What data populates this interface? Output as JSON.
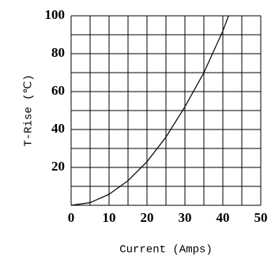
{
  "chart_data": {
    "type": "line",
    "xlabel": "Current (Amps)",
    "ylabel": "T-Rise (℃)",
    "x": [
      0,
      5,
      10,
      15,
      20,
      25,
      30,
      35,
      40,
      41.5
    ],
    "series": [
      {
        "name": "T-Rise",
        "color": "#000000",
        "values": [
          0,
          1.4,
          5.8,
          13,
          23,
          36,
          52,
          70,
          92,
          100
        ]
      }
    ],
    "xlim": [
      0,
      50
    ],
    "xticks": [
      0,
      10,
      20,
      30,
      40,
      50
    ],
    "ylim": [
      0,
      100
    ],
    "yticks": [
      20,
      40,
      60,
      80,
      100
    ],
    "xminorticks": [
      5,
      15,
      25,
      35,
      45
    ],
    "yminorticks": [
      10,
      30,
      50,
      70,
      90
    ],
    "grid": true
  }
}
